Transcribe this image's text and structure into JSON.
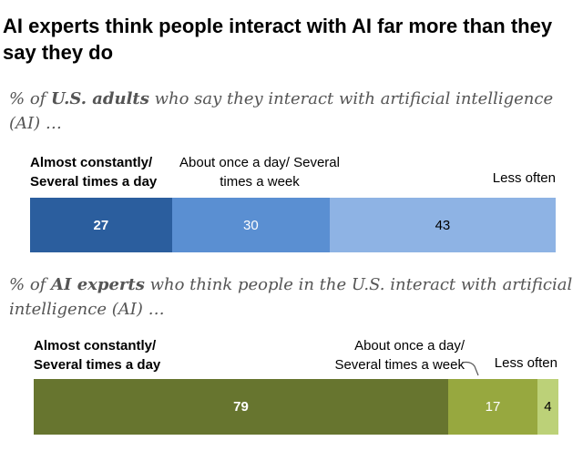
{
  "title": "AI experts think people interact with AI far more than they say they do",
  "panels": [
    {
      "subtitle_pre": "% of ",
      "subtitle_em": "U.S. adults",
      "subtitle_post": " who say they interact with artificial intelligence (AI) …",
      "labels": [
        "Almost constantly/ Several times a day",
        "About once a day/ Several times a week",
        "Less often"
      ]
    },
    {
      "subtitle_pre": "% of ",
      "subtitle_em": "AI experts",
      "subtitle_post": " who think people in the U.S. interact with artificial intelligence (AI) …",
      "labels": [
        "Almost constantly/ Several times a day",
        "About once a day/ Several times a week",
        "Less often"
      ]
    }
  ],
  "chart_data": {
    "type": "bar",
    "orientation": "horizontal",
    "stacked": true,
    "title": "AI experts think people interact with AI far more than they say they do",
    "categories": [
      "U.S. adults",
      "AI experts"
    ],
    "series": [
      {
        "name": "Almost constantly/ Several times a day",
        "values": [
          27,
          79
        ]
      },
      {
        "name": "About once a day/ Several times a week",
        "values": [
          30,
          17
        ]
      },
      {
        "name": "Less often",
        "values": [
          43,
          4
        ]
      }
    ],
    "colors": [
      [
        "#2b5e9e",
        "#5a8fd2",
        "#8eb3e4"
      ],
      [
        "#67752f",
        "#97a83f",
        "#bcd178"
      ]
    ],
    "label_colors": [
      [
        "#ffffff",
        "#ffffff",
        "#000000"
      ],
      [
        "#ffffff",
        "#ffffff",
        "#000000"
      ]
    ],
    "xlim": [
      0,
      100
    ]
  }
}
